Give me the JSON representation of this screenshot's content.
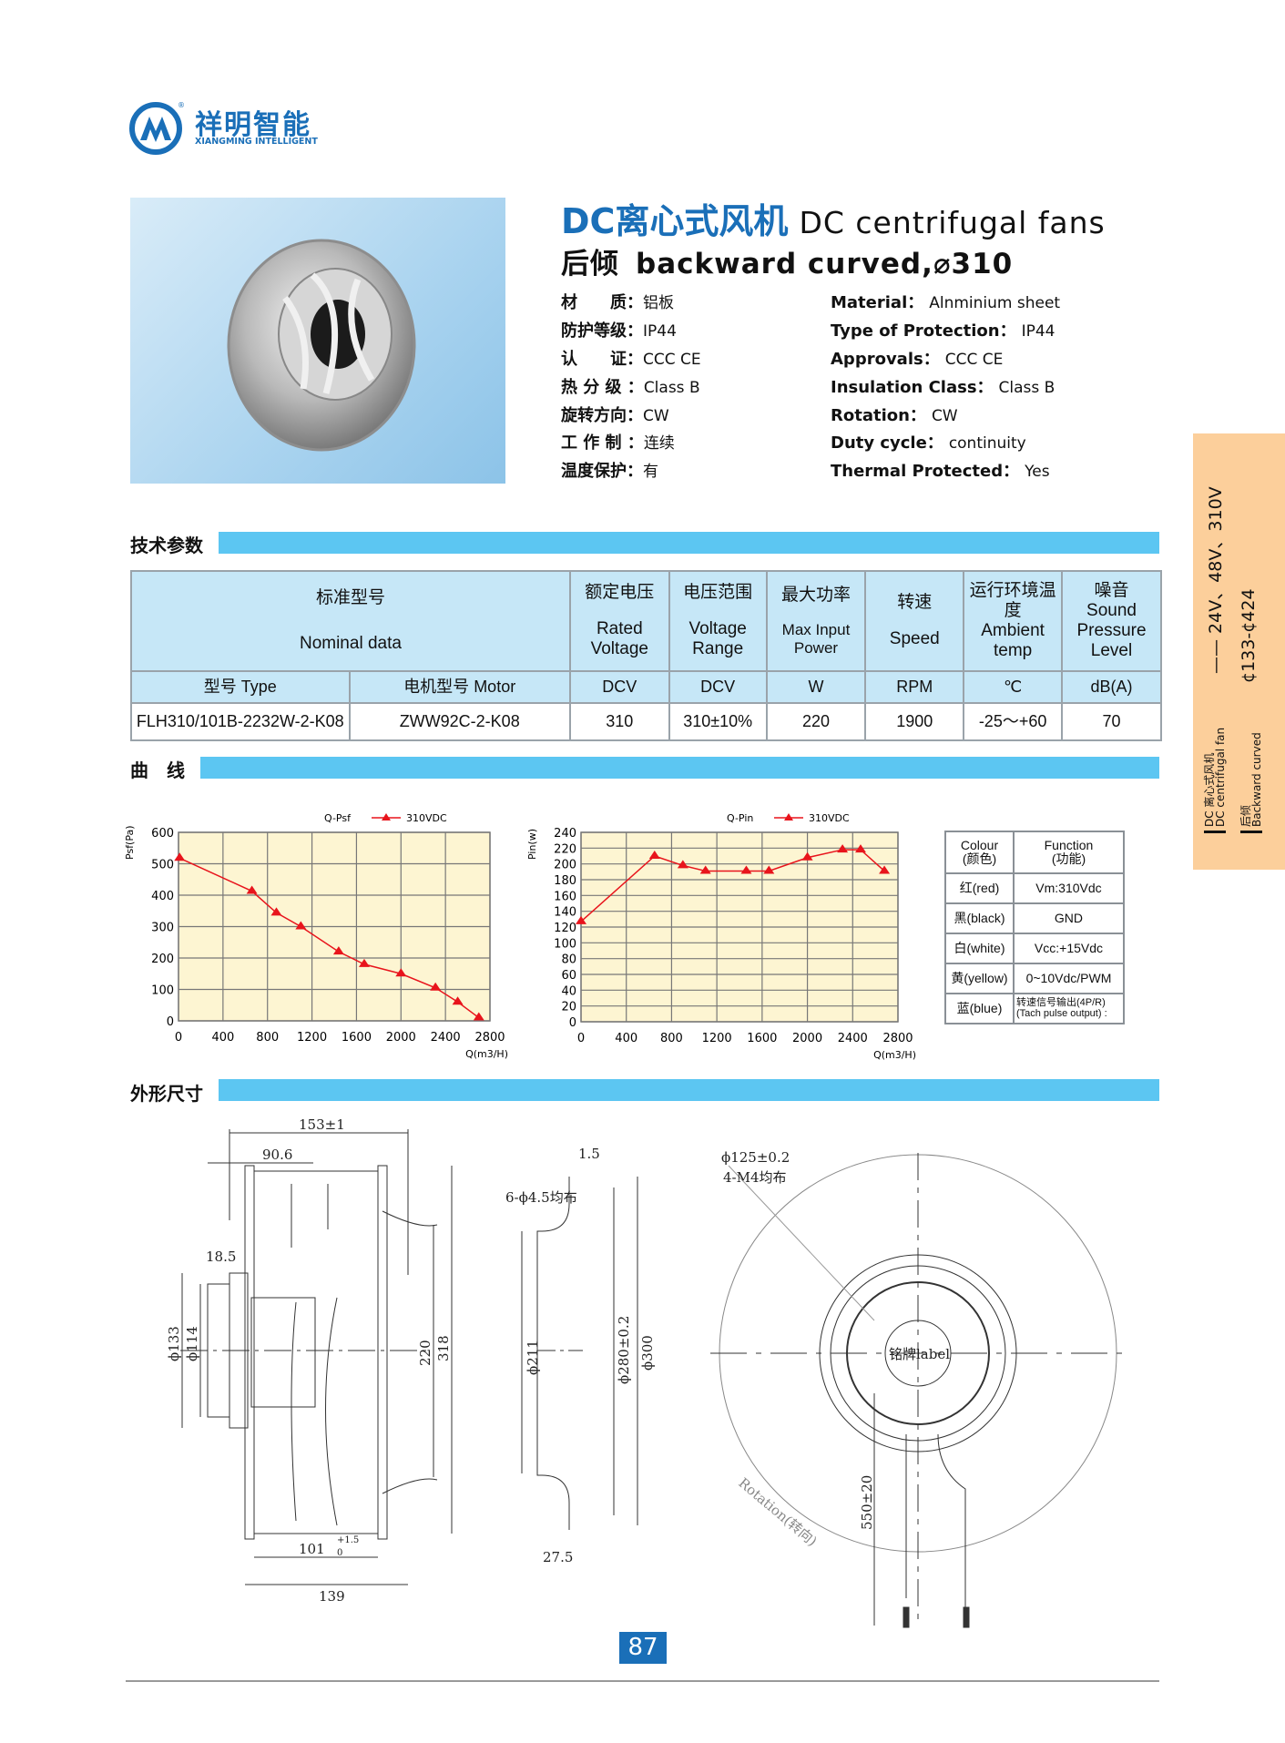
{
  "logo": {
    "cn": "祥明智能",
    "en": "XIANGMING INTELLIGENT",
    "mark": "®"
  },
  "header": {
    "title_cn": "DC离心式风机",
    "title_en": "DC centrifugal fans",
    "subtitle_cn": "后倾",
    "subtitle_en": "backward curved,⌀310"
  },
  "specs_cn": [
    {
      "label": "材　　质：",
      "value": "铝板"
    },
    {
      "label": "防护等级：",
      "value": "IP44"
    },
    {
      "label": "认　　证：",
      "value": "CCC  CE"
    },
    {
      "label": "热 分 级 ：",
      "value": "Class  B"
    },
    {
      "label": "旋转方向：",
      "value": "CW"
    },
    {
      "label": "工 作 制 ：",
      "value": "连续"
    },
    {
      "label": "温度保护：",
      "value": "有"
    }
  ],
  "specs_en": [
    {
      "label": "Material：",
      "value": "Alnminium sheet"
    },
    {
      "label": "Type of Protection：",
      "value": "IP44"
    },
    {
      "label": "Approvals：",
      "value": "CCC  CE"
    },
    {
      "label": "Insulation Class：",
      "value": "Class  B"
    },
    {
      "label": "Rotation：",
      "value": "CW"
    },
    {
      "label": "Duty cycle：",
      "value": "continuity"
    },
    {
      "label": "Thermal  Protected：",
      "value": "Yes"
    }
  ],
  "sections": {
    "tech": "技术参数",
    "curves": "曲　线",
    "dims": "外形尺寸"
  },
  "spec_table": {
    "header": {
      "nominal_cn": "标准型号",
      "nominal_en": "Nominal  data",
      "cols": [
        {
          "cn": "额定电压",
          "en": "Rated Voltage"
        },
        {
          "cn": "电压范围",
          "en": "Voltage Range"
        },
        {
          "cn": "最大功率",
          "en": "Max Input Power"
        },
        {
          "cn": "转速",
          "en": "Speed"
        },
        {
          "cn": "运行环境温度",
          "en": "Ambient temp"
        },
        {
          "cn": "噪音",
          "en": "Sound Pressure Level"
        }
      ]
    },
    "units": [
      "型号 Type",
      "电机型号  Motor",
      "DCV",
      "DCV",
      "W",
      "RPM",
      "℃",
      "dB(A)"
    ],
    "rows": [
      [
        "FLH310/101B-2232W-2-K08",
        "ZWW92C-2-K08",
        "310",
        "310±10%",
        "220",
        "1900",
        "-25～+60",
        "70"
      ]
    ]
  },
  "chart_data": [
    {
      "type": "line",
      "title": "Q-Psf",
      "xlabel": "Q(m3/H)",
      "ylabel": "Psf(Pa)",
      "xlim": [
        0,
        2800
      ],
      "ylim": [
        0,
        600
      ],
      "xticks": [
        0,
        400,
        800,
        1200,
        1600,
        2000,
        2400,
        2800
      ],
      "yticks": [
        0,
        100,
        200,
        300,
        400,
        500,
        600
      ],
      "grid": true,
      "legend": "top",
      "background": "#fdf5d2",
      "series_color": "#e8141c",
      "series": [
        {
          "name": "310VDC",
          "marker": "triangle",
          "x": [
            10,
            660,
            880,
            1100,
            1440,
            1670,
            2000,
            2310,
            2510,
            2700
          ],
          "y": [
            518,
            413,
            344,
            300,
            220,
            180,
            150,
            105,
            60,
            10
          ]
        }
      ]
    },
    {
      "type": "line",
      "title": "Q-Pin",
      "xlabel": "Q(m3/H)",
      "ylabel": "Pin(w)",
      "xlim": [
        0,
        2800
      ],
      "ylim": [
        0,
        240
      ],
      "xticks": [
        0,
        400,
        800,
        1200,
        1600,
        2000,
        2400,
        2800
      ],
      "yticks": [
        0,
        20,
        40,
        60,
        80,
        100,
        120,
        140,
        160,
        180,
        200,
        220,
        240
      ],
      "grid": true,
      "legend": "top",
      "background": "#fdf5d2",
      "series_color": "#e8141c",
      "series": [
        {
          "name": "310VDC",
          "marker": "triangle",
          "x": [
            0,
            650,
            900,
            1100,
            1460,
            1660,
            2000,
            2310,
            2470,
            2680
          ],
          "y": [
            127,
            210,
            198,
            191,
            191,
            191,
            208,
            218,
            218,
            191
          ]
        }
      ]
    }
  ],
  "wiring": {
    "header": {
      "colour": "Colour",
      "colour_cn": "(颜色)",
      "function": "Function",
      "function_cn": "(功能)"
    },
    "rows": [
      {
        "colour": "红(red)",
        "function": "Vm:310Vdc"
      },
      {
        "colour": "黑(black)",
        "function": "GND"
      },
      {
        "colour": "白(white)",
        "function": "Vcc:+15Vdc"
      },
      {
        "colour": "黄(yellow)",
        "function": "0~10Vdc/PWM"
      },
      {
        "colour": "蓝(blue)",
        "function": "转速信号输出(4P/R)",
        "function2": "(Tach pulse output) :"
      }
    ]
  },
  "drawings": {
    "side": {
      "d153": "153±1",
      "d90": "90.6",
      "d18": "18.5",
      "d133": "ϕ133",
      "d114": "ϕ114",
      "d220": "220",
      "d318": "318",
      "d101": "101",
      "d101_tol_up": "+1.5",
      "d101_tol_dn": "0",
      "d139": "139"
    },
    "ring": {
      "d15": "1.5",
      "holes": "6-ϕ4.5均布",
      "d211": "ϕ211",
      "d280": "ϕ280±0.2",
      "d300": "ϕ300",
      "d275": "27.5"
    },
    "front": {
      "pcd": "ϕ125±0.2",
      "screws": "4-M4均布",
      "label": "铭牌label",
      "cable": "550±20",
      "rotation": "Rotation(转向)"
    }
  },
  "side_tab": {
    "cn1": "DC 离心式风机",
    "en1": "DC centrifugal fan",
    "voltages": "——  24V、48V、310V",
    "cn2": "后倾",
    "en2": "Backward curved",
    "range": "¢133-¢424"
  },
  "page_number": "87",
  "colors": {
    "brand_blue": "#1a6fb8",
    "section_bar": "#5cc6f2",
    "table_header": "#c6e7f7",
    "side_tab": "#fccf9b"
  }
}
